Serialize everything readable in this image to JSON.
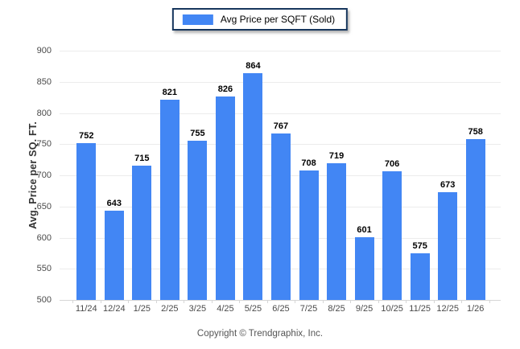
{
  "legend": {
    "label": "Avg Price per SQFT (Sold)"
  },
  "footer": {
    "copyright": "Copyright © Trendgraphix, Inc."
  },
  "colors": {
    "bar": "#4286f4",
    "legend_border": "#17365d",
    "gridline": "#ececec",
    "axis_line": "#d6d6d6",
    "value_label": "#000000",
    "tick_label": "#4a4a4a"
  },
  "chart_data": {
    "type": "bar",
    "title": "",
    "ylabel": "Avg. Price per SQ. FT.",
    "xlabel": "",
    "legend_entries": [
      "Avg Price per SQFT (Sold)"
    ],
    "legend_position": "top-center",
    "grid": true,
    "ylim": [
      500,
      900
    ],
    "yticks": [
      900,
      850,
      800,
      750,
      700,
      650,
      600,
      550,
      500
    ],
    "categories": [
      "11/24",
      "12/24",
      "1/25",
      "2/25",
      "3/25",
      "4/25",
      "5/25",
      "6/25",
      "7/25",
      "8/25",
      "9/25",
      "10/25",
      "11/25",
      "12/25",
      "1/26"
    ],
    "values": [
      752,
      643,
      715,
      821,
      755,
      826,
      864,
      767,
      708,
      719,
      601,
      706,
      575,
      673,
      758
    ]
  }
}
